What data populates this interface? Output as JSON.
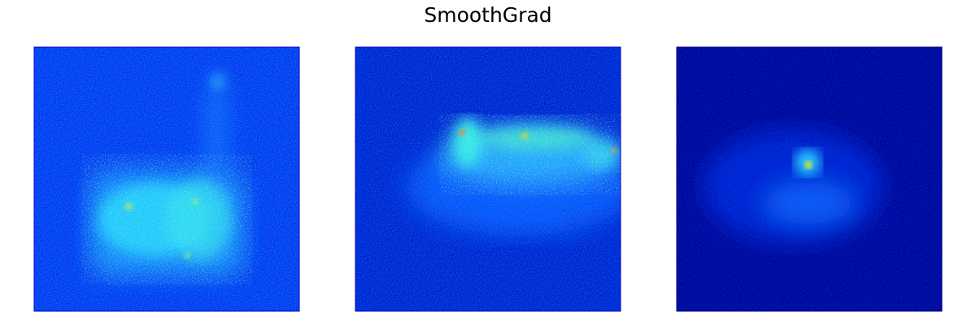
{
  "title": "SmoothGrad"
}
